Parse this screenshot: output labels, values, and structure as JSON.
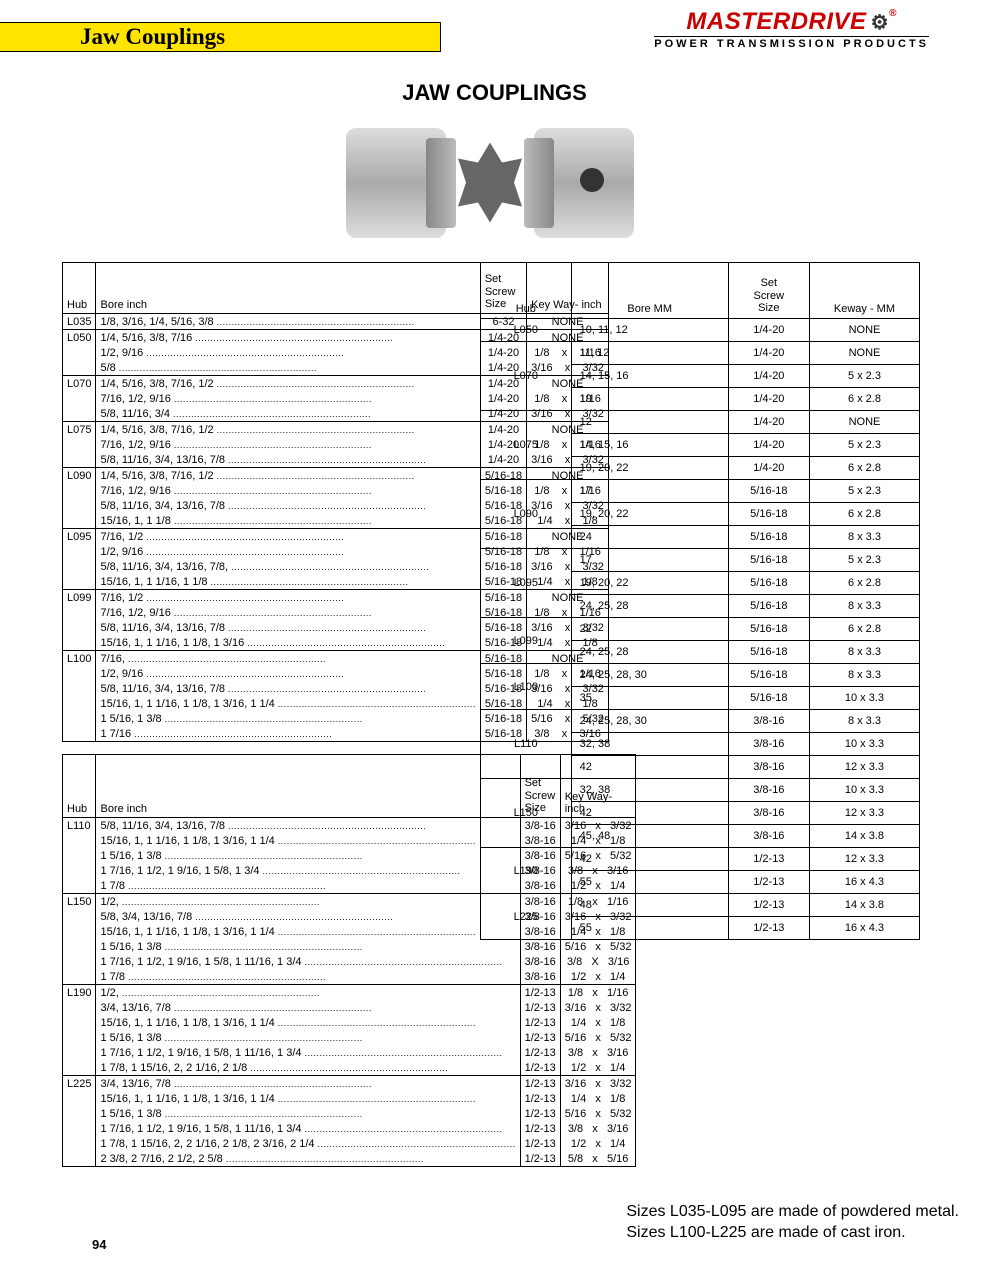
{
  "header": {
    "banner": "Jaw Couplings",
    "brand": "MASTERDRIVE",
    "brand_reg": "®",
    "brand_tag": "POWER TRANSMISSION PRODUCTS",
    "title": "JAW COUPLINGS"
  },
  "col_headers_inch": {
    "hub": "Hub",
    "bore": "Bore inch",
    "screw": "Set\nScrew\nSize",
    "key": "Key Way- inch"
  },
  "col_headers_mm": {
    "hub": "Hub",
    "bore": "Bore MM",
    "screw": "Set\nScrew\nSize",
    "key": "Keway - MM"
  },
  "inch_table_1": [
    {
      "hub": "L035",
      "rows": [
        {
          "bore": "1/8, 3/16, 1/4, 5/16, 3/8",
          "screw": "6-32",
          "key": "NONE"
        }
      ]
    },
    {
      "hub": "L050",
      "rows": [
        {
          "bore": "1/4, 5/16, 3/8, 7/16",
          "screw": "1/4-20",
          "key": "NONE"
        },
        {
          "bore": "1/2, 9/16",
          "screw": "1/4-20",
          "key": "1/8    x    1/16"
        },
        {
          "bore": "5/8",
          "screw": "1/4-20",
          "key": "3/16    x    3/32"
        }
      ]
    },
    {
      "hub": "L070",
      "rows": [
        {
          "bore": "1/4, 5/16, 3/8, 7/16, 1/2",
          "screw": "1/4-20",
          "key": "NONE"
        },
        {
          "bore": "7/16, 1/2, 9/16",
          "screw": "1/4-20",
          "key": "1/8    x    1/16"
        },
        {
          "bore": "5/8, 11/16, 3/4",
          "screw": "1/4-20",
          "key": "3/16    x    3/32"
        }
      ]
    },
    {
      "hub": "L075",
      "rows": [
        {
          "bore": "1/4, 5/16, 3/8, 7/16, 1/2",
          "screw": "1/4-20",
          "key": "NONE"
        },
        {
          "bore": "7/16, 1/2, 9/16",
          "screw": "1/4-20",
          "key": "1/8    x    1/16"
        },
        {
          "bore": "5/8, 11/16, 3/4, 13/16, 7/8",
          "screw": "1/4-20",
          "key": "3/16    x    3/32"
        }
      ]
    },
    {
      "hub": "L090",
      "rows": [
        {
          "bore": "1/4, 5/16, 3/8, 7/16, 1/2",
          "screw": "5/16-18",
          "key": "NONE"
        },
        {
          "bore": "7/16, 1/2, 9/16",
          "screw": "5/16-18",
          "key": "1/8    x    1/16"
        },
        {
          "bore": "5/8, 11/16, 3/4, 13/16, 7/8",
          "screw": "5/16-18",
          "key": "3/16    x    3/32"
        },
        {
          "bore": "15/16, 1, 1 1/8",
          "screw": "5/16-18",
          "key": "1/4    x    1/8"
        }
      ]
    },
    {
      "hub": "L095",
      "rows": [
        {
          "bore": "7/16, 1/2",
          "screw": "5/16-18",
          "key": "NONE"
        },
        {
          "bore": "1/2, 9/16",
          "screw": "5/16-18",
          "key": "1/8    x    1/16"
        },
        {
          "bore": "5/8, 11/16, 3/4, 13/16, 7/8,",
          "screw": "5/16-18",
          "key": "3/16    x    3/32"
        },
        {
          "bore": "15/16, 1, 1 1/16, 1 1/8",
          "screw": "5/16-18",
          "key": "1/4    x    1/8"
        }
      ]
    },
    {
      "hub": "L099",
      "rows": [
        {
          "bore": "7/16, 1/2",
          "screw": "5/16-18",
          "key": "NONE"
        },
        {
          "bore": "7/16, 1/2, 9/16",
          "screw": "5/16-18",
          "key": "1/8    x    1/16"
        },
        {
          "bore": "5/8, 11/16, 3/4, 13/16, 7/8",
          "screw": "5/16-18",
          "key": "3/16    x    3/32"
        },
        {
          "bore": "15/16, 1, 1 1/16, 1 1/8, 1 3/16",
          "screw": "5/16-18",
          "key": "1/4    x    1/8"
        }
      ]
    },
    {
      "hub": "L100",
      "rows": [
        {
          "bore": "7/16,",
          "screw": "5/16-18",
          "key": "NONE"
        },
        {
          "bore": "1/2, 9/16",
          "screw": "5/16-18",
          "key": "1/8    x    1/16"
        },
        {
          "bore": "5/8, 11/16, 3/4, 13/16, 7/8",
          "screw": "5/16-18",
          "key": "3/16    x    3/32"
        },
        {
          "bore": "15/16, 1, 1 1/16, 1 1/8, 1 3/16, 1 1/4",
          "screw": "5/16-18",
          "key": "1/4    x    1/8"
        },
        {
          "bore": "1 5/16, 1 3/8",
          "screw": "5/16-18",
          "key": "5/16    x    5/32"
        },
        {
          "bore": "1 7/16",
          "screw": "5/16-18",
          "key": "3/8    x    3/16"
        }
      ]
    }
  ],
  "inch_table_2": [
    {
      "hub": "L110",
      "rows": [
        {
          "bore": "5/8, 11/16, 3/4, 13/16, 7/8",
          "screw": "3/8-16",
          "key": "3/16   x   3/32"
        },
        {
          "bore": "15/16, 1, 1 1/16, 1 1/8, 1 3/16, 1 1/4",
          "screw": "3/8-16",
          "key": "1/4   x   1/8"
        },
        {
          "bore": "1 5/16, 1 3/8",
          "screw": "3/8-16",
          "key": "5/16   x   5/32"
        },
        {
          "bore": "1 7/16, 1 1/2, 1 9/16, 1 5/8, 1 3/4",
          "screw": "3/8-16",
          "key": "3/8   x   3/16"
        },
        {
          "bore": "1 7/8",
          "screw": "3/8-16",
          "key": "1/2   x   1/4"
        }
      ]
    },
    {
      "hub": "L150",
      "rows": [
        {
          "bore": "1/2,",
          "screw": "3/8-16",
          "key": "1/8   x   1/16"
        },
        {
          "bore": "5/8, 3/4, 13/16, 7/8",
          "screw": "3/8-16",
          "key": "3/16   x   3/32"
        },
        {
          "bore": "15/16, 1, 1 1/16, 1 1/8, 1 3/16, 1 1/4",
          "screw": "3/8-16",
          "key": "1/4   x   1/8"
        },
        {
          "bore": "1 5/16, 1 3/8",
          "screw": "3/8-16",
          "key": "5/16   x   5/32"
        },
        {
          "bore": "1 7/16, 1 1/2, 1 9/16, 1 5/8, 1 11/16, 1 3/4",
          "screw": "3/8-16",
          "key": "3/8   X   3/16"
        },
        {
          "bore": "1 7/8",
          "screw": "3/8-16",
          "key": "1/2   x   1/4"
        }
      ]
    },
    {
      "hub": "L190",
      "rows": [
        {
          "bore": "1/2,",
          "screw": "1/2-13",
          "key": "1/8   x   1/16"
        },
        {
          "bore": "3/4, 13/16, 7/8",
          "screw": "1/2-13",
          "key": "3/16   x   3/32"
        },
        {
          "bore": "15/16, 1, 1 1/16, 1 1/8, 1 3/16, 1 1/4",
          "screw": "1/2-13",
          "key": "1/4   x   1/8"
        },
        {
          "bore": "1 5/16, 1 3/8",
          "screw": "1/2-13",
          "key": "5/16   x   5/32"
        },
        {
          "bore": "1 7/16, 1 1/2, 1 9/16, 1 5/8, 1 11/16, 1 3/4",
          "screw": "1/2-13",
          "key": "3/8   x   3/16"
        },
        {
          "bore": "1 7/8, 1 15/16, 2, 2 1/16, 2 1/8",
          "screw": "1/2-13",
          "key": "1/2   x   1/4"
        }
      ]
    },
    {
      "hub": "L225",
      "rows": [
        {
          "bore": "3/4, 13/16, 7/8",
          "screw": "1/2-13",
          "key": "3/16   x   3/32"
        },
        {
          "bore": "15/16, 1, 1 1/16, 1 1/8, 1 3/16, 1 1/4",
          "screw": "1/2-13",
          "key": "1/4   x   1/8"
        },
        {
          "bore": "1 5/16, 1 3/8",
          "screw": "1/2-13",
          "key": "5/16   x   5/32"
        },
        {
          "bore": "1 7/16, 1 1/2, 1 9/16, 1 5/8, 1 11/16, 1 3/4",
          "screw": "1/2-13",
          "key": "3/8   x   3/16"
        },
        {
          "bore": "1 7/8, 1 15/16, 2, 2 1/16, 2 1/8, 2 3/16, 2 1/4",
          "screw": "1/2-13",
          "key": "1/2   x   1/4"
        },
        {
          "bore": "2 3/8, 2 7/16, 2 1/2, 2 5/8",
          "screw": "1/2-13",
          "key": "5/8   x   5/16"
        }
      ]
    }
  ],
  "mm_table": [
    {
      "hub": "L050",
      "rows": [
        {
          "bore": "10, 11, 12",
          "screw": "1/4-20",
          "key": "NONE"
        }
      ]
    },
    {
      "hub": "L070",
      "rows": [
        {
          "bore": "11, 12",
          "screw": "1/4-20",
          "key": "NONE"
        },
        {
          "bore": "14, 15, 16",
          "screw": "1/4-20",
          "key": "5 x 2.3"
        },
        {
          "bore": "19",
          "screw": "1/4-20",
          "key": "6 x 2.8"
        }
      ]
    },
    {
      "hub": "L075",
      "rows": [
        {
          "bore": "12",
          "screw": "1/4-20",
          "key": "NONE"
        },
        {
          "bore": "14, 15, 16",
          "screw": "1/4-20",
          "key": "5 x 2.3"
        },
        {
          "bore": "19, 20, 22",
          "screw": "1/4-20",
          "key": "6 x 2.8"
        }
      ]
    },
    {
      "hub": "L090",
      "rows": [
        {
          "bore": "17",
          "screw": "5/16-18",
          "key": "5 x 2.3"
        },
        {
          "bore": "19, 20, 22",
          "screw": "5/16-18",
          "key": "6 x 2.8"
        },
        {
          "bore": "24",
          "screw": "5/16-18",
          "key": "8 x 3.3"
        }
      ]
    },
    {
      "hub": "L095",
      "rows": [
        {
          "bore": "17",
          "screw": "5/16-18",
          "key": "5 x 2.3"
        },
        {
          "bore": "19, 20, 22",
          "screw": "5/16-18",
          "key": "6 x 2.8"
        },
        {
          "bore": "24, 25, 28",
          "screw": "5/16-18",
          "key": "8 x 3.3"
        }
      ]
    },
    {
      "hub": "L099",
      "rows": [
        {
          "bore": "22",
          "screw": "5/16-18",
          "key": "6 x 2.8"
        },
        {
          "bore": "24, 25, 28",
          "screw": "5/16-18",
          "key": "8 x 3.3"
        }
      ]
    },
    {
      "hub": "L100",
      "rows": [
        {
          "bore": "24, 25, 28, 30",
          "screw": "5/16-18",
          "key": "8 x 3.3"
        },
        {
          "bore": "35",
          "screw": "5/16-18",
          "key": "10 x 3.3"
        }
      ]
    },
    {
      "hub": "L110",
      "rows": [
        {
          "bore": "24, 25, 28, 30",
          "screw": "3/8-16",
          "key": "8 x 3.3"
        },
        {
          "bore": "32, 38",
          "screw": "3/8-16",
          "key": "10 x 3.3"
        },
        {
          "bore": "42",
          "screw": "3/8-16",
          "key": "12 x 3.3"
        }
      ]
    },
    {
      "hub": "L150",
      "rows": [
        {
          "bore": "32, 38",
          "screw": "3/8-16",
          "key": "10 x 3.3"
        },
        {
          "bore": "42",
          "screw": "3/8-16",
          "key": "12 x 3.3"
        },
        {
          "bore": "45, 48",
          "screw": "3/8-16",
          "key": "14 x 3.8"
        }
      ]
    },
    {
      "hub": "L190",
      "rows": [
        {
          "bore": "42",
          "screw": "1/2-13",
          "key": "12 x 3.3"
        },
        {
          "bore": "55",
          "screw": "1/2-13",
          "key": "16 x 4.3"
        }
      ]
    },
    {
      "hub": "L225",
      "rows": [
        {
          "bore": "48",
          "screw": "1/2-13",
          "key": "14 x 3.8"
        },
        {
          "bore": "55",
          "screw": "1/2-13",
          "key": "16 x 4.3"
        }
      ]
    }
  ],
  "notes": {
    "line1": "Sizes L035-L095 are made of powdered metal.",
    "line2": "Sizes L100-L225 are made of cast iron."
  },
  "page_num": "94"
}
